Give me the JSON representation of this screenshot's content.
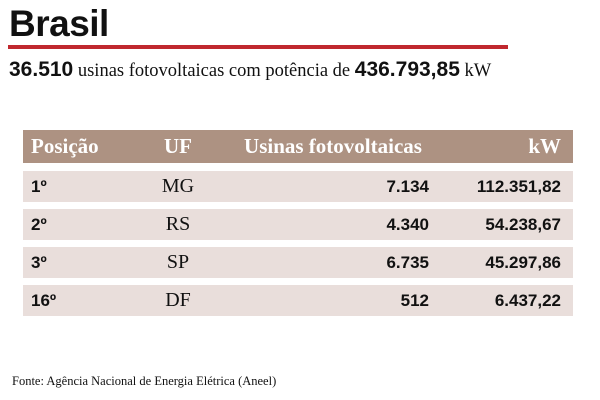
{
  "title": "Brasil",
  "summary": {
    "plants_count": "36.510",
    "text_middle": "usinas fotovoltaicas com potência de",
    "power_total": "436.793,85",
    "unit": "kW"
  },
  "table": {
    "headers": {
      "position": "Posição",
      "uf": "UF",
      "plants": "Usinas fotovoltaicas",
      "kw": "kW"
    },
    "rows": [
      {
        "position": "1º",
        "uf": "MG",
        "plants": "7.134",
        "kw": "112.351,82"
      },
      {
        "position": "2º",
        "uf": "RS",
        "plants": "4.340",
        "kw": "54.238,67"
      },
      {
        "position": "3º",
        "uf": "SP",
        "plants": "6.735",
        "kw": "45.297,86"
      },
      {
        "position": "16º",
        "uf": "DF",
        "plants": "512",
        "kw": "6.437,22"
      }
    ]
  },
  "source": "Fonte: Agência Nacional de Energia Elétrica (Aneel)",
  "colors": {
    "accent_rule": "#c0282e",
    "header_bg": "#ad9282",
    "row_bg": "#e9dedb"
  }
}
